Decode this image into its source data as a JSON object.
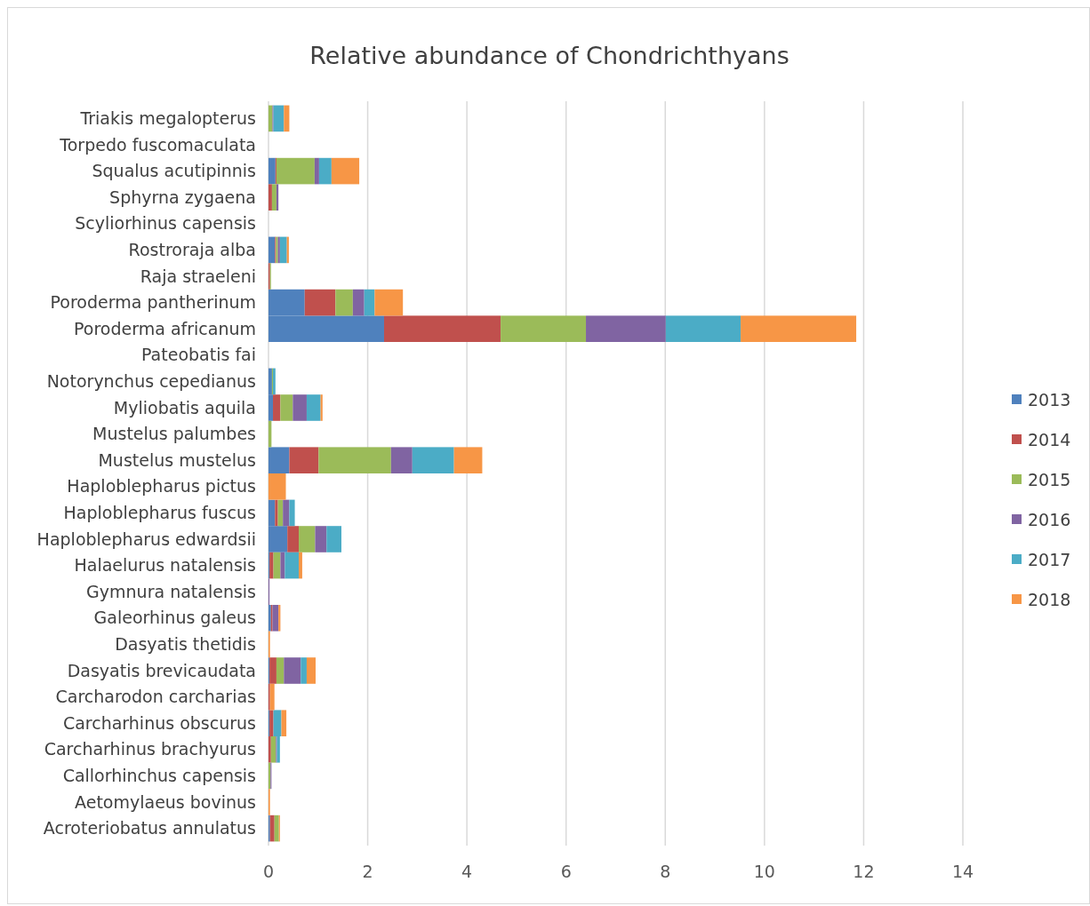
{
  "chart_data": {
    "type": "bar",
    "orientation": "horizontal",
    "stacked": true,
    "title": "Relative abundance of Chondrichthyans",
    "categories": [
      "Triakis megalopterus",
      "Torpedo fuscomaculata",
      "Squalus acutipinnis",
      "Sphyrna zygaena",
      "Scyliorhinus capensis",
      "Rostroraja alba",
      "Raja straeleni",
      "Poroderma pantherinum",
      "Poroderma africanum",
      "Pateobatis fai",
      "Notorynchus cepedianus",
      "Myliobatis aquila",
      "Mustelus palumbes",
      "Mustelus mustelus",
      "Haploblepharus pictus",
      "Haploblepharus fuscus",
      "Haploblepharus edwardsii",
      "Halaelurus natalensis",
      "Gymnura natalensis",
      "Galeorhinus galeus",
      "Dasyatis thetidis",
      "Dasyatis brevicaudata",
      "Carcharodon carcharias",
      "Carcharhinus obscurus",
      "Carcharhinus brachyurus",
      "Callorhinchus capensis",
      "Aetomylaeus bovinus",
      "Acroteriobatus annulatus"
    ],
    "series": [
      {
        "name": "2013",
        "color": "#4f81bd",
        "values": [
          0,
          0,
          0.14,
          0,
          0,
          0.13,
          0,
          0.73,
          2.33,
          0,
          0.07,
          0.09,
          0,
          0.42,
          0,
          0.13,
          0.38,
          0.02,
          0,
          0.05,
          0,
          0.02,
          0,
          0.02,
          0,
          0,
          0,
          0.03
        ]
      },
      {
        "name": "2014",
        "color": "#c0504d",
        "values": [
          0,
          0,
          0.02,
          0.07,
          0,
          0.02,
          0.03,
          0.62,
          2.35,
          0,
          0,
          0.15,
          0,
          0.59,
          0,
          0.06,
          0.23,
          0.08,
          0,
          0.03,
          0,
          0.14,
          0.03,
          0.08,
          0.05,
          0,
          0,
          0.09
        ]
      },
      {
        "name": "2015",
        "color": "#9bbb59",
        "values": [
          0.08,
          0,
          0.77,
          0.09,
          0,
          0.04,
          0.02,
          0.35,
          1.72,
          0,
          0.02,
          0.25,
          0.06,
          1.46,
          0,
          0.1,
          0.33,
          0.14,
          0,
          0,
          0,
          0.15,
          0,
          0,
          0.1,
          0.04,
          0,
          0.09
        ]
      },
      {
        "name": "2016",
        "color": "#8064a2",
        "values": [
          0.02,
          0,
          0.09,
          0.04,
          0,
          0.04,
          0,
          0.23,
          1.61,
          0,
          0,
          0.28,
          0,
          0.43,
          0,
          0.13,
          0.23,
          0.09,
          0.02,
          0.12,
          0,
          0.34,
          0,
          0,
          0.02,
          0.02,
          0,
          0
        ]
      },
      {
        "name": "2017",
        "color": "#4bacc6",
        "values": [
          0.21,
          0,
          0.25,
          0,
          0,
          0.14,
          0,
          0.21,
          1.51,
          0,
          0.05,
          0.28,
          0,
          0.84,
          0,
          0.11,
          0.3,
          0.28,
          0,
          0,
          0,
          0.12,
          0,
          0.16,
          0.06,
          0,
          0,
          0
        ]
      },
      {
        "name": "2018",
        "color": "#f79646",
        "values": [
          0.11,
          0,
          0.56,
          0,
          0,
          0.04,
          0,
          0.57,
          2.33,
          0,
          0,
          0.04,
          0,
          0.57,
          0.35,
          0,
          0,
          0.07,
          0,
          0.04,
          0.03,
          0.18,
          0.09,
          0.1,
          0,
          0,
          0.03,
          0.02
        ]
      }
    ],
    "xlim": [
      0,
      14
    ],
    "xticks": [
      0,
      2,
      4,
      6,
      8,
      10,
      12,
      14
    ],
    "grid": "x",
    "legend": "right"
  }
}
